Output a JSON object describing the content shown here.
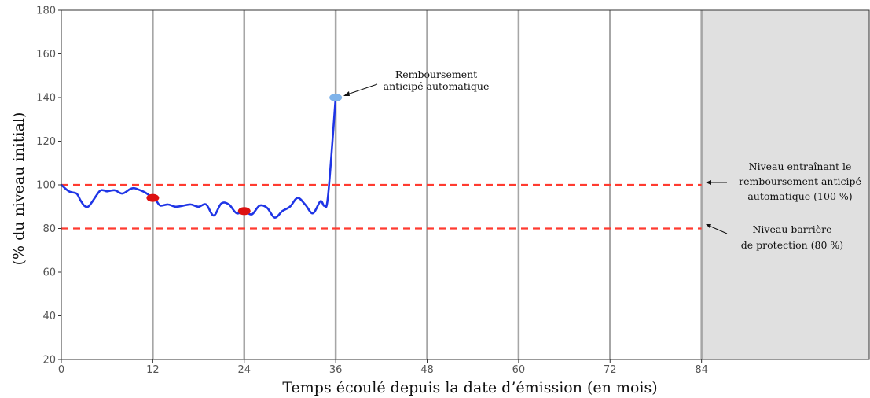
{
  "chart_data": {
    "type": "line",
    "xlabel": "Temps écoulé depuis la date d’émission (en mois)",
    "ylabel": "(% du niveau initial)",
    "xlim": [
      0,
      106
    ],
    "ylim": [
      20,
      180
    ],
    "x_ticks": [
      "0",
      "12",
      "24",
      "36",
      "48",
      "60",
      "72",
      "84"
    ],
    "y_ticks": [
      "20",
      "40",
      "60",
      "80",
      "100",
      "120",
      "140",
      "160",
      "180"
    ],
    "grid": "vertical lines at observation dates (12, 24, 36, 48, 60, 72, 84)",
    "shaded_region_from_x": 84,
    "series": [
      {
        "color": "#1f35e6",
        "x": [
          0,
          1,
          2,
          2.5,
          3,
          3.5,
          4,
          5,
          5.5,
          6,
          7,
          8,
          9,
          9.5,
          10,
          11,
          12,
          12.5,
          13,
          14,
          15,
          16,
          17,
          18,
          19,
          20,
          21,
          22,
          23,
          24,
          25,
          26,
          27,
          28,
          29,
          30,
          31,
          32,
          33,
          34,
          34.5,
          35,
          36
        ],
        "y": [
          100,
          97,
          96,
          93,
          90.5,
          90,
          92,
          97,
          97.5,
          97,
          97.5,
          96,
          98,
          98.5,
          98,
          96.5,
          94,
          92.5,
          90.5,
          91,
          90,
          90.5,
          91,
          90,
          91,
          86,
          91.5,
          91,
          87,
          88,
          86.5,
          90.5,
          89.5,
          85,
          88,
          90,
          94,
          91,
          87,
          92.5,
          90.5,
          95,
          140
        ]
      }
    ],
    "reference_lines": [
      {
        "y": 100,
        "color": "#ff3b30",
        "style": "dashed"
      },
      {
        "y": 80,
        "color": "#ff3b30",
        "style": "dashed"
      }
    ],
    "markers": [
      {
        "x": 12,
        "y": 94,
        "color": "#dd1111"
      },
      {
        "x": 24,
        "y": 88,
        "color": "#dd1111"
      },
      {
        "x": 36,
        "y": 140,
        "color": "#7fb3ea"
      }
    ],
    "annotations": {
      "autocall_1": "Remboursement",
      "autocall_2": "anticipé automatique",
      "trigger_1": "Niveau entraînant le",
      "trigger_2": "remboursement anticipé",
      "trigger_3": "automatique (100 %)",
      "barrier_1": "Niveau barrière",
      "barrier_2": "de protection (80 %)"
    }
  }
}
